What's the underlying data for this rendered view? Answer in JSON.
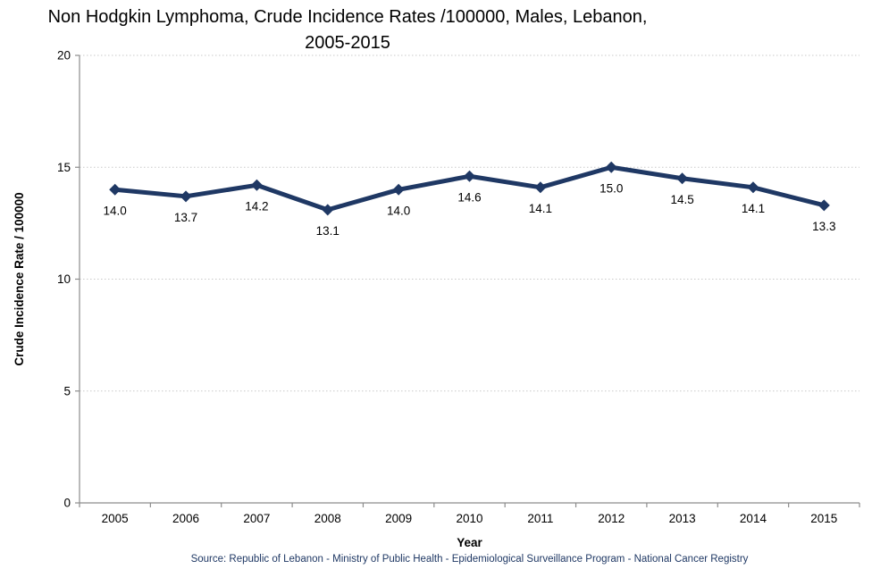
{
  "title": {
    "line1": "Non Hodgkin Lymphoma, Crude Incidence Rates /100000, Males, Lebanon,",
    "line2": "2005-2015"
  },
  "chart_data": {
    "type": "line",
    "title": "Non Hodgkin Lymphoma, Crude Incidence Rates /100000, Males, Lebanon, 2005-2015",
    "categories": [
      "2005",
      "2006",
      "2007",
      "2008",
      "2009",
      "2010",
      "2011",
      "2012",
      "2013",
      "2014",
      "2015"
    ],
    "series": [
      {
        "name": "Crude Incidence Rate",
        "values": [
          14.0,
          13.7,
          14.2,
          13.1,
          14.0,
          14.6,
          14.1,
          15.0,
          14.5,
          14.1,
          13.3
        ],
        "labels": [
          "14.0",
          "13.7",
          "14.2",
          "13.1",
          "14.0",
          "14.6",
          "14.1",
          "15.0",
          "14.5",
          "14.1",
          "13.3"
        ]
      }
    ],
    "xlabel": "Year",
    "ylabel": "Crude Incidence Rate / 100000",
    "ylim": [
      0,
      20
    ],
    "yticks": [
      0,
      5,
      10,
      15,
      20
    ],
    "grid": "horizontal-dotted",
    "legend_position": "none",
    "data_labels_position": "below",
    "marker": "diamond",
    "colors": {
      "line": "#1F3864",
      "marker": "#1F3864",
      "axis": "#8C8C8C",
      "gridline": "#C9C9C9",
      "text": "#000000",
      "source_text": "#1F3864"
    },
    "source": "Source: Republic of Lebanon  - Ministry of Public Health - Epidemiological Surveillance Program - National Cancer Registry"
  }
}
